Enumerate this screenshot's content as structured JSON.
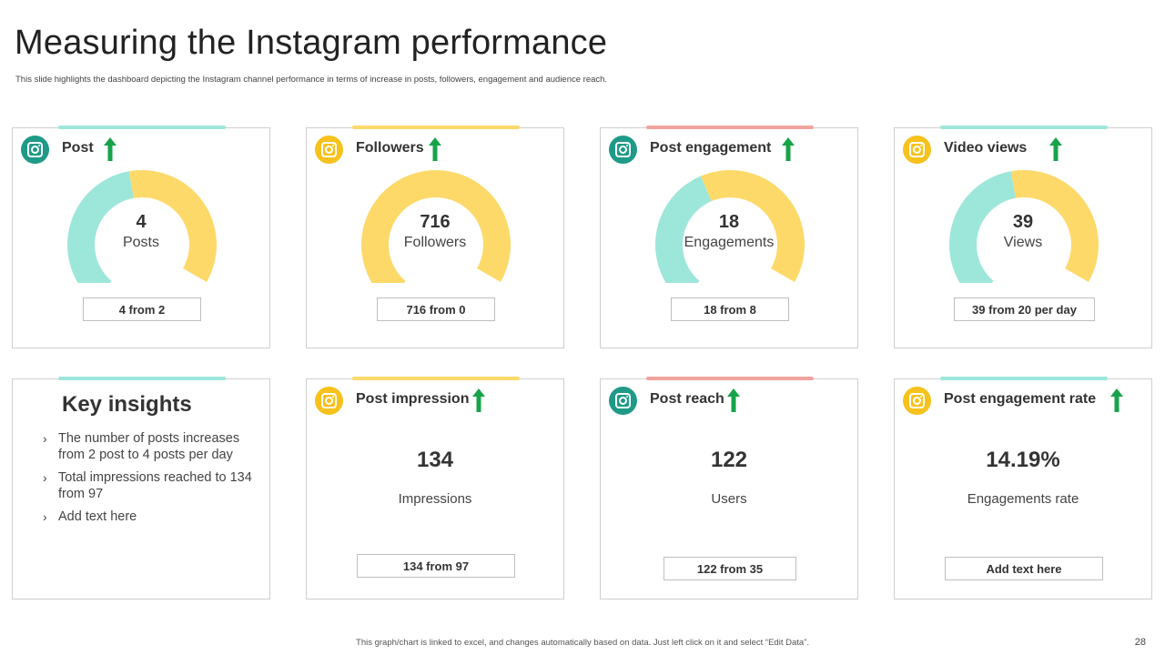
{
  "header": {
    "title": "Measuring the Instagram performance",
    "subtitle": "This slide highlights the dashboard depicting the Instagram channel performance in terms of increase in posts, followers, engagement and audience reach."
  },
  "colors": {
    "teal": "#9de6da",
    "yellow": "#fdd96a",
    "salmon": "#f2a39e",
    "icon_teal": "#1e9a87",
    "icon_yellow": "#f6c21b",
    "arrow_green": "#17a34a"
  },
  "cards": {
    "post": {
      "title": "Post",
      "value": "4",
      "unit": "Posts",
      "comparison": "4 from 2",
      "gauge_filled_fraction": 0.5,
      "icon": "instagram-icon",
      "trend_icon": "up-arrow-icon"
    },
    "followers": {
      "title": "Followers",
      "value": "716",
      "unit": "Followers",
      "comparison": "716 from 0",
      "gauge_filled_fraction": 0.0,
      "icon": "instagram-icon",
      "trend_icon": "up-arrow-icon"
    },
    "engagement": {
      "title": "Post engagement",
      "value": "18",
      "unit": "Engagements",
      "comparison": "18 from 8",
      "gauge_filled_fraction": 0.45,
      "icon": "instagram-icon",
      "trend_icon": "up-arrow-icon"
    },
    "video_views": {
      "title": "Video views",
      "value": "39",
      "unit": "Views",
      "comparison": "39 from 20 per day",
      "gauge_filled_fraction": 0.5,
      "icon": "instagram-icon",
      "trend_icon": "up-arrow-icon"
    },
    "impression": {
      "title": "Post impression",
      "value": "134",
      "unit": "Impressions",
      "comparison": "134 from 97",
      "icon": "instagram-icon",
      "trend_icon": "up-arrow-icon"
    },
    "reach": {
      "title": "Post reach",
      "value": "122",
      "unit": "Users",
      "comparison": "122 from 35",
      "icon": "instagram-icon",
      "trend_icon": "up-arrow-icon"
    },
    "engagement_rate": {
      "title": "Post engagement rate",
      "value": "14.19%",
      "unit": "Engagements rate",
      "comparison": "Add text here",
      "icon": "instagram-icon",
      "trend_icon": "up-arrow-icon"
    }
  },
  "insights": {
    "title": "Key insights",
    "items": [
      "The number of posts increases from 2 post to 4 posts per day",
      "Total impressions reached to 134 from 97",
      "Add text here"
    ]
  },
  "footer": {
    "note": "This graph/chart is linked to excel, and changes automatically based on data. Just left click on it and select “Edit Data”.",
    "page_number": "28"
  }
}
